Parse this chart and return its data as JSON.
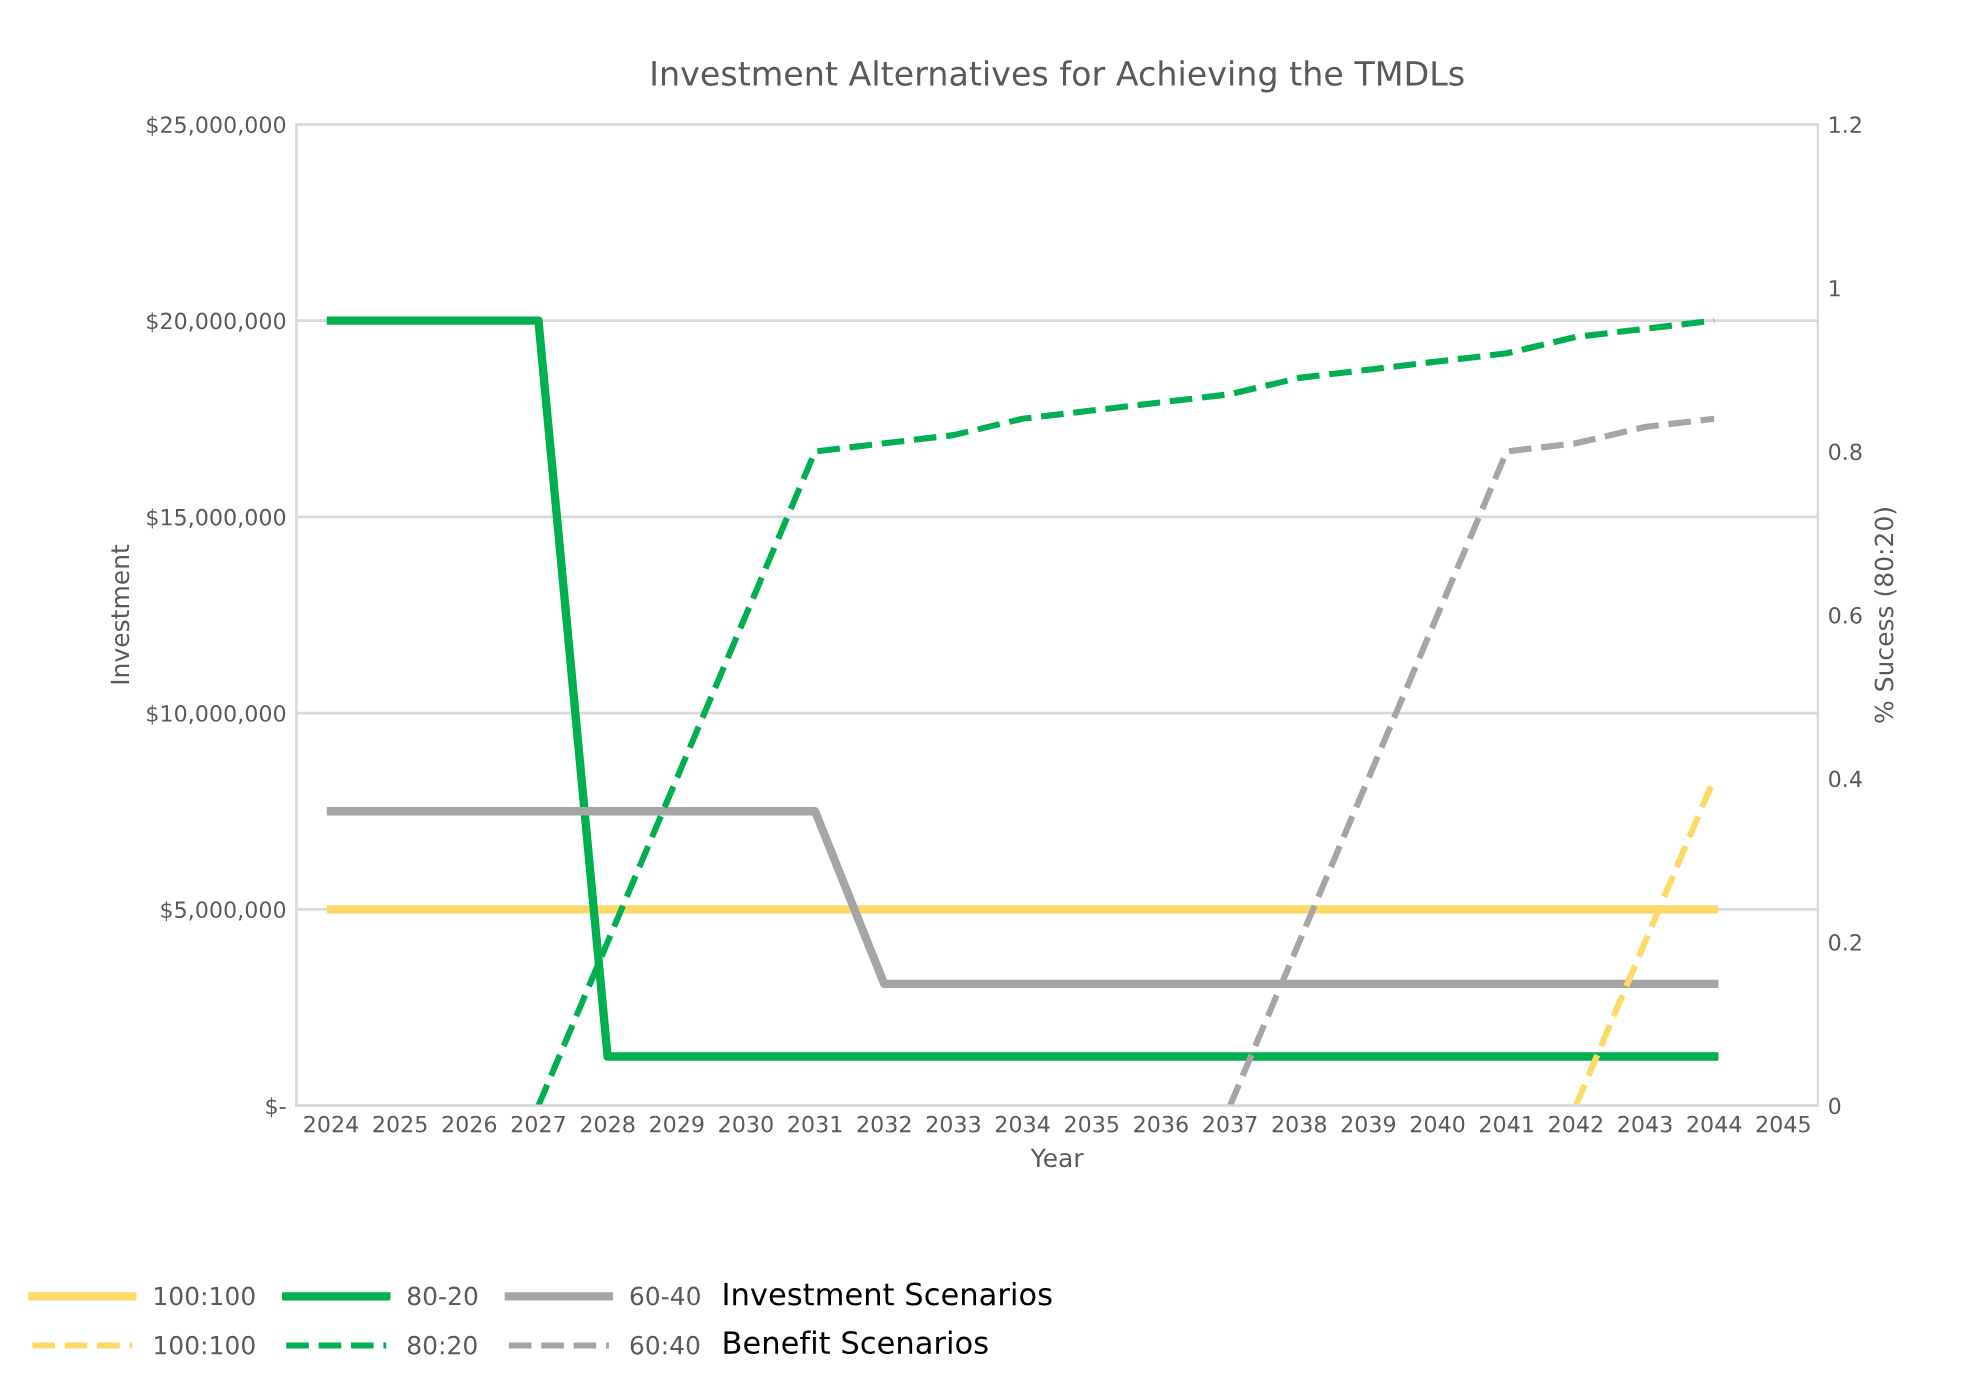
{
  "chart_data": {
    "type": "line",
    "title": "Investment Alternatives for Achieving the TMDLs",
    "xlabel": "Year",
    "ylabel": "Investment",
    "y2label": "% Sucess (80:20)",
    "categories": [
      "2024",
      "2025",
      "2026",
      "2027",
      "2028",
      "2029",
      "2030",
      "2031",
      "2032",
      "2033",
      "2034",
      "2035",
      "2036",
      "2037",
      "2038",
      "2039",
      "2040",
      "2041",
      "2042",
      "2043",
      "2044",
      "2045"
    ],
    "series": [
      {
        "name": "100:100",
        "color": "#ffd966",
        "line_style": "solid",
        "values": [
          5000000,
          5000000,
          5000000,
          5000000,
          5000000,
          5000000,
          5000000,
          5000000,
          5000000,
          5000000,
          5000000,
          5000000,
          5000000,
          5000000,
          5000000,
          5000000,
          5000000,
          5000000,
          5000000,
          5000000,
          5000000,
          null
        ]
      },
      {
        "name": "80-20",
        "color": "#00b050",
        "line_style": "solid",
        "values": [
          20000000,
          20000000,
          20000000,
          20000000,
          1250000,
          1250000,
          1250000,
          1250000,
          1250000,
          1250000,
          1250000,
          1250000,
          1250000,
          1250000,
          1250000,
          1250000,
          1250000,
          1250000,
          1250000,
          1250000,
          1250000,
          null
        ]
      },
      {
        "name": "60-40",
        "color": "#a5a5a5",
        "line_style": "solid",
        "values": [
          7500000,
          7500000,
          7500000,
          7500000,
          7500000,
          7500000,
          7500000,
          7500000,
          3100000,
          3100000,
          3100000,
          3100000,
          3100000,
          3100000,
          3100000,
          3100000,
          3100000,
          3100000,
          3100000,
          3100000,
          3100000,
          null
        ]
      },
      {
        "name": "100:100",
        "color": "#ffd966",
        "line_style": "dashed",
        "axis": "y2",
        "values": [
          null,
          null,
          null,
          null,
          null,
          null,
          null,
          null,
          null,
          null,
          null,
          null,
          null,
          null,
          null,
          null,
          null,
          null,
          0,
          0.2,
          0.4,
          null
        ]
      },
      {
        "name": "80:20",
        "color": "#00b050",
        "line_style": "dashed",
        "axis": "y2",
        "values": [
          null,
          null,
          null,
          0,
          0.2,
          0.4,
          0.6,
          0.8,
          0.81,
          0.82,
          0.84,
          0.85,
          0.86,
          0.87,
          0.89,
          0.9,
          0.91,
          0.92,
          0.94,
          0.95,
          0.96,
          null
        ]
      },
      {
        "name": "60:40",
        "color": "#a5a5a5",
        "line_style": "dashed",
        "axis": "y2",
        "values": [
          null,
          null,
          null,
          null,
          null,
          null,
          null,
          null,
          null,
          null,
          null,
          null,
          null,
          0,
          0.2,
          0.4,
          0.6,
          0.8,
          0.81,
          0.83,
          0.84,
          null
        ]
      }
    ],
    "ylim": [
      0,
      25000000
    ],
    "yticks": [
      {
        "value": 0,
        "label": "$-"
      },
      {
        "value": 5000000,
        "label": "$5,000,000"
      },
      {
        "value": 10000000,
        "label": "$10,000,000"
      },
      {
        "value": 15000000,
        "label": "$15,000,000"
      },
      {
        "value": 20000000,
        "label": "$20,000,000"
      },
      {
        "value": 25000000,
        "label": "$25,000,000"
      }
    ],
    "y2lim": [
      0,
      1.2
    ],
    "y2ticks": [
      0,
      0.2,
      0.4,
      0.6,
      0.8,
      1,
      1.2
    ],
    "grid": "y",
    "legend": "bottom",
    "marker": "none",
    "annotations": [
      "Investment Scenarios",
      "Benefit Scenarios"
    ]
  }
}
